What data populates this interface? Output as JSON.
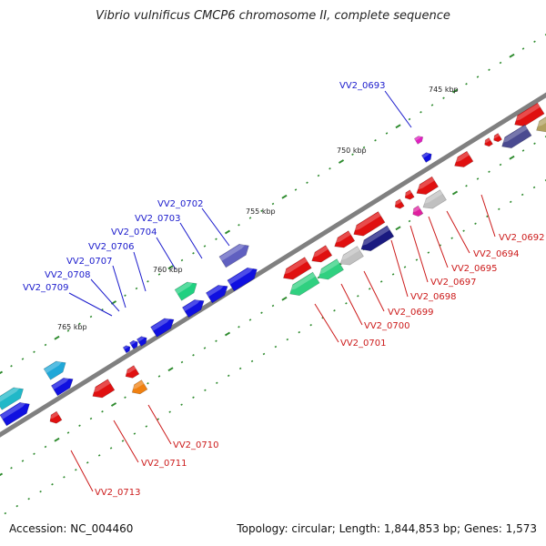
{
  "title": "Vibrio vulnificus CMCP6 chromosome II, complete sequence",
  "footer": {
    "accession": "Accession: NC_004460",
    "summary": "Topology: circular; Length: 1,844,853 bp; Genes: 1,573"
  },
  "scale_labels": [
    "745 kbp",
    "750 kbp",
    "755 kbp",
    "760 kbp",
    "765 kbp"
  ],
  "colors": {
    "forward_label": "#1a1acc",
    "reverse_label": "#cc1a1a",
    "backbone": "#808080",
    "tick": "#2e8b2e"
  },
  "forward_labels": [
    "VV2_0693",
    "VV2_0702",
    "VV2_0703",
    "VV2_0704",
    "VV2_0706",
    "VV2_0707",
    "VV2_0708",
    "VV2_0709"
  ],
  "reverse_labels": [
    "VV2_0692",
    "VV2_0694",
    "VV2_0695",
    "VV2_0697",
    "VV2_0698",
    "VV2_0699",
    "VV2_0700",
    "VV2_0701",
    "VV2_0710",
    "VV2_0711",
    "VV2_0713"
  ]
}
